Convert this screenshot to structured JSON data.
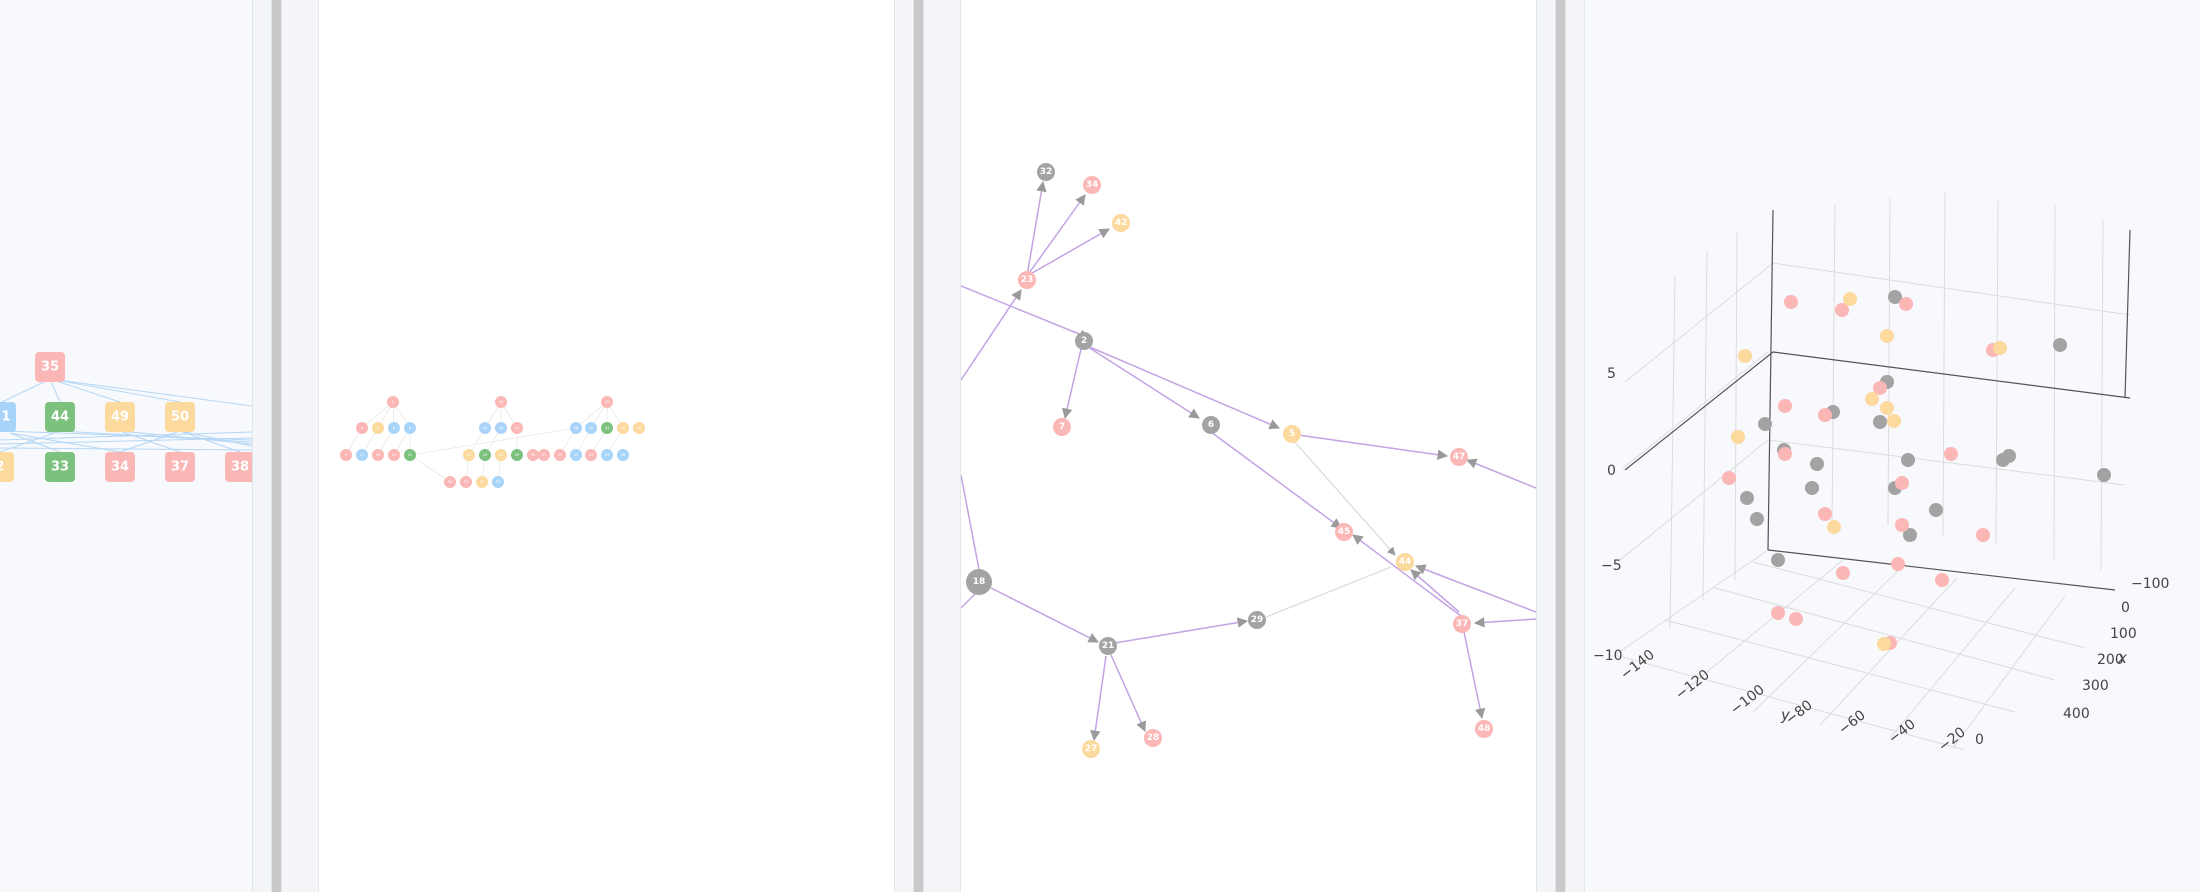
{
  "colors": {
    "pink": "#fbb6b6",
    "yellow": "#fcd99d",
    "blue": "#a8d4fa",
    "green": "#7cc27e",
    "gray": "#a3a3a3",
    "edge_purple": "#c3a3e3",
    "edge_light": "#d9d9d9",
    "edge_blue": "#b5d7f5",
    "panel_bg": "#f7f9fc",
    "divider": "#c9c9c9"
  },
  "panel1_hierarchy": {
    "top_node": {
      "label": "35",
      "color": "pink"
    },
    "row1": [
      {
        "label": "1",
        "color": "blue"
      },
      {
        "label": "44",
        "color": "green"
      },
      {
        "label": "49",
        "color": "yellow"
      },
      {
        "label": "50",
        "color": "yellow"
      }
    ],
    "row2": [
      {
        "label": "2",
        "color": "yellow"
      },
      {
        "label": "33",
        "color": "green"
      },
      {
        "label": "34",
        "color": "pink"
      },
      {
        "label": "37",
        "color": "pink"
      },
      {
        "label": "38",
        "color": "pink"
      }
    ]
  },
  "panel2_tree": {
    "nodes": [
      {
        "label": "1",
        "color": "pink"
      },
      {
        "label": "3",
        "color": "pink"
      },
      {
        "label": "5",
        "color": "yellow"
      },
      {
        "label": "8",
        "color": "blue"
      },
      {
        "label": "9",
        "color": "blue"
      },
      {
        "label": "0",
        "color": "pink"
      },
      {
        "label": "10",
        "color": "blue"
      },
      {
        "label": "11",
        "color": "pink"
      },
      {
        "label": "16",
        "color": "pink"
      },
      {
        "label": "12",
        "color": "green"
      },
      {
        "label": "14",
        "color": "pink"
      },
      {
        "label": "15",
        "color": "blue"
      },
      {
        "label": "18",
        "color": "blue"
      },
      {
        "label": "21",
        "color": "pink"
      },
      {
        "label": "22",
        "color": "yellow"
      },
      {
        "label": "23",
        "color": "green"
      },
      {
        "label": "24",
        "color": "yellow"
      },
      {
        "label": "25",
        "color": "green"
      },
      {
        "label": "26",
        "color": "pink"
      },
      {
        "label": "27",
        "color": "pink"
      },
      {
        "label": "29",
        "color": "pink"
      },
      {
        "label": "30",
        "color": "pink"
      },
      {
        "label": "31",
        "color": "pink"
      },
      {
        "label": "32",
        "color": "yellow"
      },
      {
        "label": "33",
        "color": "blue"
      },
      {
        "label": "36",
        "color": "pink"
      },
      {
        "label": "37",
        "color": "blue"
      },
      {
        "label": "38",
        "color": "blue"
      },
      {
        "label": "39",
        "color": "blue"
      },
      {
        "label": "40",
        "color": "blue"
      },
      {
        "label": "41",
        "color": "green"
      },
      {
        "label": "42",
        "color": "yellow"
      },
      {
        "label": "43",
        "color": "pink"
      },
      {
        "label": "44",
        "color": "blue"
      },
      {
        "label": "45",
        "color": "yellow"
      },
      {
        "label": "46",
        "color": "pink"
      },
      {
        "label": "47",
        "color": "pink"
      },
      {
        "label": "48",
        "color": "blue"
      },
      {
        "label": "49",
        "color": "pink"
      },
      {
        "label": "50",
        "color": "yellow"
      }
    ]
  },
  "panel3_graph": {
    "nodes": [
      {
        "label": "32",
        "color": "gray"
      },
      {
        "label": "34",
        "color": "pink"
      },
      {
        "label": "42",
        "color": "yellow"
      },
      {
        "label": "23",
        "color": "pink"
      },
      {
        "label": "2",
        "color": "gray"
      },
      {
        "label": "7",
        "color": "pink"
      },
      {
        "label": "6",
        "color": "gray"
      },
      {
        "label": "5",
        "color": "yellow"
      },
      {
        "label": "47",
        "color": "pink"
      },
      {
        "label": "45",
        "color": "pink"
      },
      {
        "label": "44",
        "color": "yellow"
      },
      {
        "label": "18",
        "color": "gray"
      },
      {
        "label": "21",
        "color": "gray"
      },
      {
        "label": "29",
        "color": "gray"
      },
      {
        "label": "37",
        "color": "pink"
      },
      {
        "label": "27",
        "color": "yellow"
      },
      {
        "label": "28",
        "color": "pink"
      },
      {
        "label": "48",
        "color": "pink"
      }
    ]
  },
  "panel4_scatter3d": {
    "type": "scatter3d",
    "x_axis": {
      "title": "x",
      "ticks": [
        "−100",
        "0",
        "100",
        "200",
        "300",
        "400"
      ]
    },
    "y_axis": {
      "title": "y",
      "ticks": [
        "−140",
        "−120",
        "−100",
        "−80",
        "−60",
        "−40",
        "−20",
        "0"
      ]
    },
    "z_axis": {
      "title": "",
      "ticks": [
        "5",
        "0",
        "−5",
        "−10"
      ]
    },
    "series_colors": [
      "gray",
      "pink",
      "yellow"
    ]
  }
}
